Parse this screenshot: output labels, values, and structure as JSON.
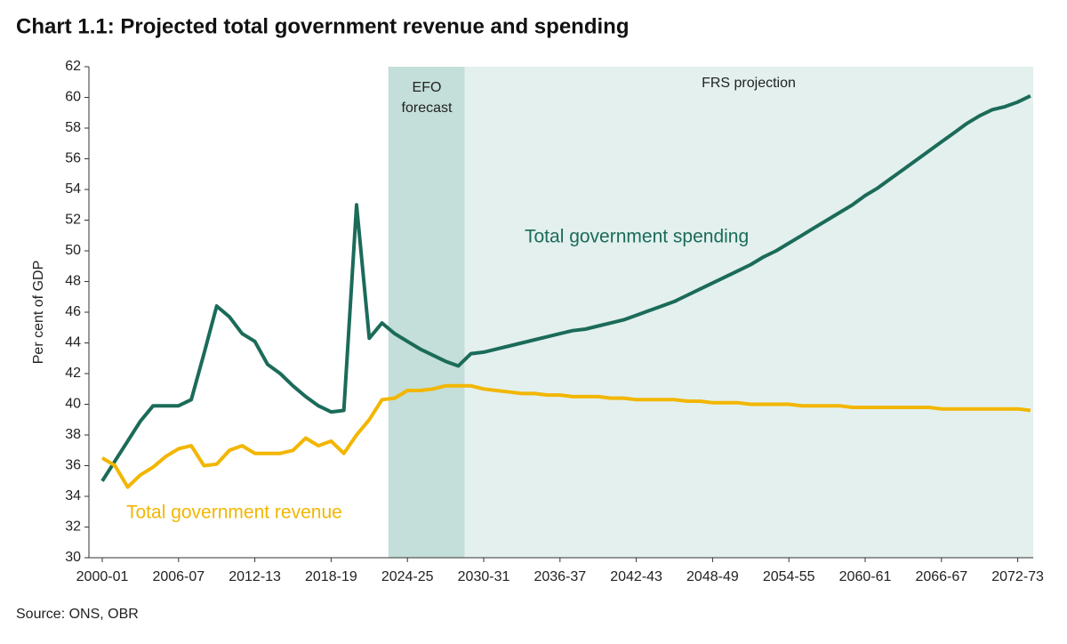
{
  "chart_data": {
    "type": "line",
    "title": "Chart 1.1: Projected total government revenue and spending",
    "y_label": "Per cent of GDP",
    "source": "Source: ONS, OBR",
    "categories": [
      "2000-01",
      null,
      null,
      null,
      null,
      null,
      "2006-07",
      null,
      null,
      null,
      null,
      null,
      "2012-13",
      null,
      null,
      null,
      null,
      null,
      "2018-19",
      null,
      null,
      null,
      null,
      null,
      "2024-25",
      null,
      null,
      null,
      null,
      null,
      "2030-31",
      null,
      null,
      null,
      null,
      null,
      "2036-37",
      null,
      null,
      null,
      null,
      null,
      "2042-43",
      null,
      null,
      null,
      null,
      null,
      "2048-49",
      null,
      null,
      null,
      null,
      null,
      "2054-55",
      null,
      null,
      null,
      null,
      null,
      "2060-61",
      null,
      null,
      null,
      null,
      null,
      "2066-67",
      null,
      null,
      null,
      null,
      null,
      "2072-73",
      null
    ],
    "series": [
      {
        "name": "Total government spending",
        "color": "#1b6b59",
        "values": [
          35.0,
          36.3,
          37.6,
          38.9,
          39.9,
          39.9,
          39.9,
          40.3,
          43.3,
          46.4,
          45.7,
          44.6,
          44.1,
          42.6,
          42.0,
          41.2,
          40.5,
          39.9,
          39.5,
          39.6,
          53.0,
          44.3,
          45.3,
          44.6,
          44.1,
          43.6,
          43.2,
          42.8,
          42.5,
          43.3,
          43.4,
          43.6,
          43.8,
          44.0,
          44.2,
          44.4,
          44.6,
          44.8,
          44.9,
          45.1,
          45.3,
          45.5,
          45.8,
          46.1,
          46.4,
          46.7,
          47.1,
          47.5,
          47.9,
          48.3,
          48.7,
          49.1,
          49.6,
          50.0,
          50.5,
          51.0,
          51.5,
          52.0,
          52.5,
          53.0,
          53.6,
          54.1,
          54.7,
          55.3,
          55.9,
          56.5,
          57.1,
          57.7,
          58.3,
          58.8,
          59.2,
          59.4,
          59.7,
          60.1
        ]
      },
      {
        "name": "Total government revenue",
        "color": "#f2b600",
        "values": [
          36.5,
          36.0,
          34.6,
          35.4,
          35.9,
          36.6,
          37.1,
          37.3,
          36.0,
          36.1,
          37.0,
          37.3,
          36.8,
          36.8,
          36.8,
          37.0,
          37.8,
          37.3,
          37.6,
          36.8,
          38.0,
          39.0,
          40.3,
          40.4,
          40.9,
          40.9,
          41.0,
          41.2,
          41.2,
          41.2,
          41.0,
          40.9,
          40.8,
          40.7,
          40.7,
          40.6,
          40.6,
          40.5,
          40.5,
          40.5,
          40.4,
          40.4,
          40.3,
          40.3,
          40.3,
          40.3,
          40.2,
          40.2,
          40.1,
          40.1,
          40.1,
          40.0,
          40.0,
          40.0,
          40.0,
          39.9,
          39.9,
          39.9,
          39.9,
          39.8,
          39.8,
          39.8,
          39.8,
          39.8,
          39.8,
          39.8,
          39.7,
          39.7,
          39.7,
          39.7,
          39.7,
          39.7,
          39.7,
          39.6
        ]
      }
    ],
    "regions": [
      {
        "label": [
          "EFO",
          "forecast"
        ],
        "color": "#c4ded9"
      },
      {
        "label": [
          "FRS projection"
        ],
        "color": "#e3f0ee"
      }
    ],
    "ylim": [
      30,
      62
    ],
    "yticks": [
      30,
      32,
      34,
      36,
      38,
      40,
      42,
      44,
      46,
      48,
      50,
      52,
      54,
      56,
      58,
      60,
      62
    ]
  }
}
